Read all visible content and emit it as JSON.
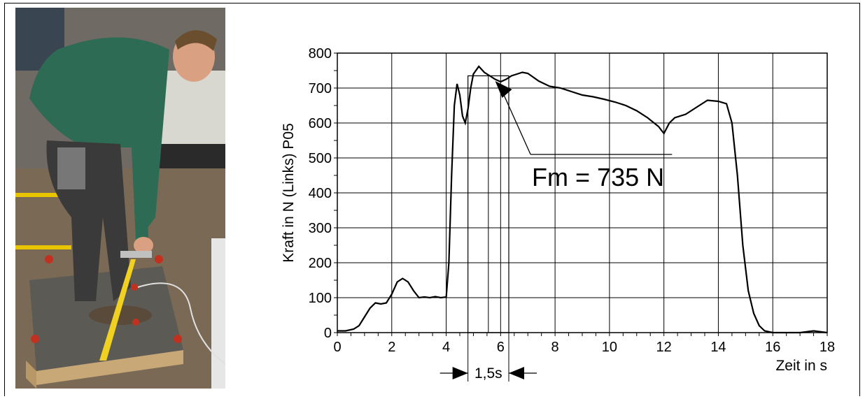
{
  "photo": {
    "description_icon": "person-lifting-handle-photo"
  },
  "chart_data": {
    "type": "line",
    "ylabel": "Kraft in N (Links) P05",
    "xlabel": "Zeit in s",
    "xlim": [
      0,
      18
    ],
    "ylim": [
      0,
      800
    ],
    "x_ticks": [
      0,
      2,
      4,
      6,
      8,
      10,
      12,
      14,
      16,
      18
    ],
    "y_ticks": [
      0,
      100,
      200,
      300,
      400,
      500,
      600,
      700,
      800
    ],
    "grid": true,
    "series": [
      {
        "x": [
          0,
          0.3,
          0.6,
          0.8,
          1.0,
          1.2,
          1.4,
          1.6,
          1.8,
          2.0,
          2.2,
          2.4,
          2.6,
          2.8,
          3.0,
          3.2,
          3.4,
          3.6,
          3.8,
          4.0,
          4.1,
          4.2,
          4.3,
          4.4,
          4.5,
          4.6,
          4.7,
          4.8,
          4.9,
          5.0,
          5.2,
          5.4,
          5.6,
          5.8,
          6.0,
          6.2,
          6.4,
          6.6,
          6.8,
          7.0,
          7.4,
          7.8,
          8.2,
          8.6,
          9.0,
          9.4,
          9.8,
          10.2,
          10.6,
          11.0,
          11.4,
          11.8,
          12.0,
          12.2,
          12.4,
          12.8,
          13.2,
          13.6,
          14.0,
          14.3,
          14.5,
          14.7,
          14.9,
          15.1,
          15.3,
          15.5,
          15.7,
          16.0,
          16.5,
          17.0,
          17.5,
          18.0
        ],
        "y": [
          5,
          5,
          10,
          20,
          45,
          70,
          85,
          82,
          85,
          110,
          145,
          155,
          145,
          120,
          100,
          102,
          100,
          103,
          100,
          102,
          200,
          450,
          650,
          712,
          680,
          620,
          600,
          640,
          700,
          740,
          762,
          745,
          735,
          725,
          718,
          725,
          735,
          740,
          745,
          742,
          720,
          705,
          700,
          690,
          680,
          675,
          668,
          660,
          650,
          635,
          615,
          590,
          570,
          600,
          615,
          625,
          645,
          665,
          662,
          655,
          600,
          450,
          250,
          120,
          55,
          20,
          5,
          0,
          0,
          0,
          5,
          0
        ]
      }
    ],
    "annotations": {
      "mean_force_label": "Fm = 735 N",
      "mean_force_value": 735,
      "window_label": "1,5s",
      "window_start": 4.8,
      "window_end": 6.3,
      "window_mid": 5.55
    }
  }
}
